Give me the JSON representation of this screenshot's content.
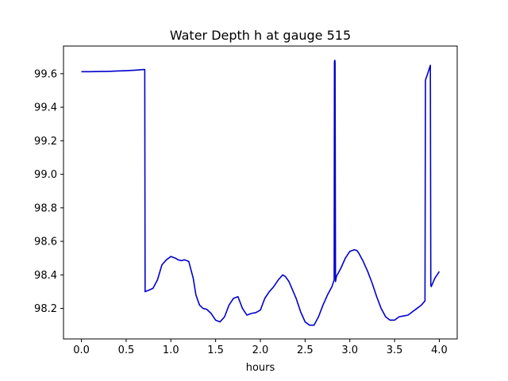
{
  "chart_data": {
    "type": "line",
    "title": "Water Depth h at gauge 515",
    "xlabel": "hours",
    "ylabel": "",
    "xlim": [
      -0.2,
      4.2
    ],
    "ylim": [
      98.018,
      99.765
    ],
    "xticks": [
      0.0,
      0.5,
      1.0,
      1.5,
      2.0,
      2.5,
      3.0,
      3.5,
      4.0
    ],
    "xtick_labels": [
      "0.0",
      "0.5",
      "1.0",
      "1.5",
      "2.0",
      "2.5",
      "3.0",
      "3.5",
      "4.0"
    ],
    "yticks": [
      98.2,
      98.4,
      98.6,
      98.8,
      99.0,
      99.2,
      99.4,
      99.6
    ],
    "ytick_labels": [
      "98.2",
      "98.4",
      "98.6",
      "98.8",
      "99.0",
      "99.2",
      "99.4",
      "99.6"
    ],
    "grid": false,
    "line_color": "#0000cc",
    "series": [
      {
        "name": "",
        "x": [
          0.0,
          0.1,
          0.2,
          0.3,
          0.4,
          0.5,
          0.6,
          0.7,
          0.708,
          0.712,
          0.75,
          0.8,
          0.85,
          0.9,
          0.95,
          1.0,
          1.05,
          1.08,
          1.12,
          1.15,
          1.2,
          1.25,
          1.28,
          1.32,
          1.36,
          1.4,
          1.45,
          1.5,
          1.55,
          1.6,
          1.65,
          1.7,
          1.75,
          1.8,
          1.85,
          1.9,
          1.95,
          2.0,
          2.05,
          2.1,
          2.15,
          2.2,
          2.25,
          2.28,
          2.32,
          2.36,
          2.4,
          2.45,
          2.5,
          2.55,
          2.6,
          2.65,
          2.7,
          2.75,
          2.8,
          2.825,
          2.828,
          2.832,
          2.835,
          2.84,
          2.85,
          2.9,
          2.95,
          3.0,
          3.05,
          3.08,
          3.1,
          3.15,
          3.2,
          3.25,
          3.3,
          3.35,
          3.4,
          3.45,
          3.5,
          3.55,
          3.6,
          3.65,
          3.7,
          3.75,
          3.8,
          3.84,
          3.845,
          3.85,
          3.87,
          3.9,
          3.905,
          3.91,
          3.95,
          4.0
        ],
        "y": [
          99.612,
          99.612,
          99.613,
          99.614,
          99.616,
          99.618,
          99.621,
          99.625,
          99.625,
          98.3,
          98.308,
          98.32,
          98.37,
          98.46,
          98.49,
          98.51,
          98.5,
          98.49,
          98.485,
          98.49,
          98.48,
          98.38,
          98.28,
          98.22,
          98.2,
          98.195,
          98.17,
          98.13,
          98.12,
          98.15,
          98.22,
          98.26,
          98.27,
          98.2,
          98.16,
          98.17,
          98.175,
          98.19,
          98.26,
          98.3,
          98.33,
          98.37,
          98.4,
          98.39,
          98.36,
          98.31,
          98.26,
          98.18,
          98.12,
          98.1,
          98.1,
          98.15,
          98.22,
          98.28,
          98.33,
          98.37,
          99.67,
          99.68,
          99.67,
          98.36,
          98.39,
          98.44,
          98.5,
          98.54,
          98.55,
          98.545,
          98.53,
          98.48,
          98.42,
          98.35,
          98.27,
          98.2,
          98.15,
          98.13,
          98.13,
          98.15,
          98.155,
          98.16,
          98.18,
          98.2,
          98.22,
          98.245,
          99.56,
          99.57,
          99.6,
          99.65,
          98.34,
          98.33,
          98.38,
          98.42
        ]
      }
    ]
  }
}
